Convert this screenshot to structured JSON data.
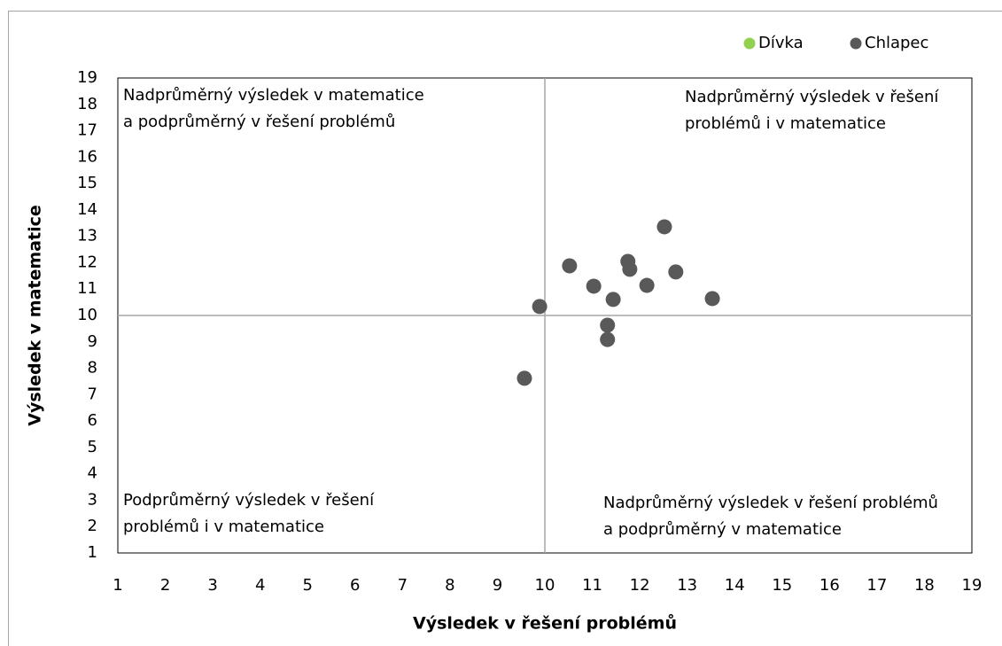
{
  "chart_data": {
    "type": "scatter",
    "x_label": "Výsledek v řešení problémů",
    "y_label": "Výsledek v matematice",
    "xlim": [
      1,
      19
    ],
    "ylim": [
      1,
      19
    ],
    "xticks": [
      1,
      2,
      3,
      4,
      5,
      6,
      7,
      8,
      9,
      10,
      11,
      12,
      13,
      14,
      15,
      16,
      17,
      18,
      19
    ],
    "yticks": [
      1,
      2,
      3,
      4,
      5,
      6,
      7,
      8,
      9,
      10,
      11,
      12,
      13,
      14,
      15,
      16,
      17,
      18,
      19
    ],
    "grid": false,
    "reference_x": 10,
    "reference_y": 10,
    "legend": "top-right",
    "series": [
      {
        "name": "Dívka",
        "color": "#92d050",
        "x": [],
        "values": []
      },
      {
        "name": "Chlapec",
        "color": "#595959",
        "x": [
          9.57,
          9.89,
          10.52,
          11.03,
          11.44,
          11.32,
          11.32,
          11.75,
          11.79,
          12.15,
          12.52,
          12.76,
          13.53
        ],
        "values": [
          7.62,
          10.34,
          11.88,
          11.11,
          10.61,
          9.63,
          9.09,
          12.05,
          11.75,
          11.14,
          13.36,
          11.65,
          10.64
        ]
      }
    ],
    "annotations": [
      [
        "Nadprůměrný výsledek v matematice",
        "a podprůměrný v řešení problémů"
      ],
      [
        "Nadprůměrný výsledek v řešení",
        "problémů i v matematice"
      ],
      [
        "Podprůměrný výsledek v řešení",
        "problémů i v matematice"
      ],
      [
        "Nadprůměrný výsledek v řešení problémů",
        "a podprůměrný v matematice"
      ]
    ]
  }
}
